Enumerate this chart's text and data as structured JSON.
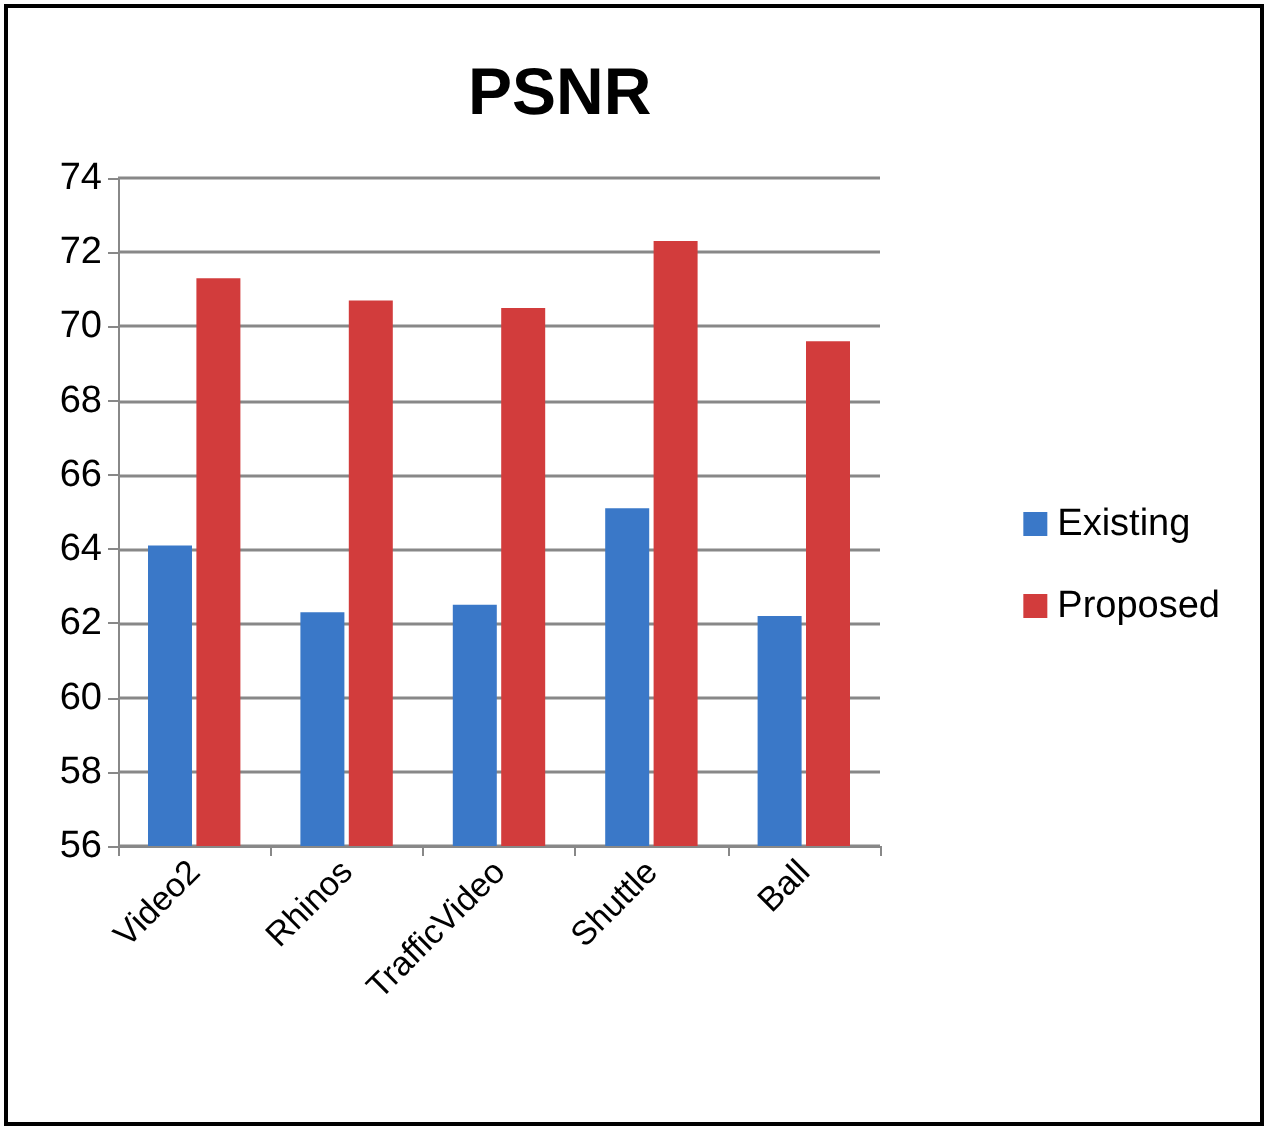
{
  "chart_data": {
    "type": "bar",
    "title": "PSNR",
    "categories": [
      "Video2",
      "Rhinos",
      "TrafficVideo",
      "Shuttle",
      "Ball"
    ],
    "series": [
      {
        "name": "Existing",
        "color": "#3a78c8",
        "values": [
          64.1,
          62.3,
          62.5,
          65.1,
          62.2
        ]
      },
      {
        "name": "Proposed",
        "color": "#d23c3c",
        "values": [
          71.3,
          70.7,
          70.5,
          72.3,
          69.6
        ]
      }
    ],
    "ylim": [
      56,
      74
    ],
    "yticks": [
      56,
      58,
      60,
      62,
      64,
      66,
      68,
      70,
      72,
      74
    ],
    "grid": "y",
    "legend": "right"
  }
}
